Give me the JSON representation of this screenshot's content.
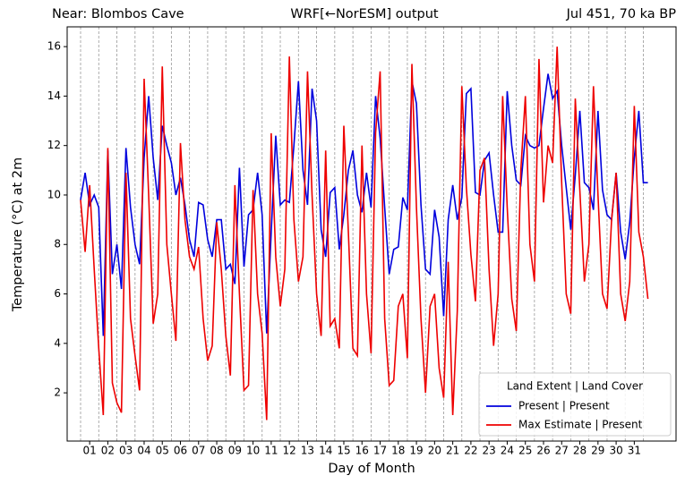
{
  "chart_data": {
    "type": "line",
    "title_left": "Near: Blombos Cave",
    "title": "WRF[←NorESM] output",
    "title_right": "Jul 451, 70 ka BP",
    "xlabel": "Day of Month",
    "ylabel": "Temperature (°C) at 2m",
    "legend_title": "Land Extent | Land Cover",
    "legend": "lower right",
    "xlim": [
      0.26,
      33.8
    ],
    "ylim": [
      0.05,
      16.8
    ],
    "yticks": [
      2,
      4,
      6,
      8,
      10,
      12,
      14,
      16
    ],
    "xticks": [
      {
        "value": 1.5,
        "label": "01"
      },
      {
        "value": 2.5,
        "label": "02"
      },
      {
        "value": 3.5,
        "label": "03"
      },
      {
        "value": 4.5,
        "label": "04"
      },
      {
        "value": 5.5,
        "label": "05"
      },
      {
        "value": 6.5,
        "label": "06"
      },
      {
        "value": 7.5,
        "label": "07"
      },
      {
        "value": 8.5,
        "label": "08"
      },
      {
        "value": 9.5,
        "label": "09"
      },
      {
        "value": 10.5,
        "label": "10"
      },
      {
        "value": 11.5,
        "label": "11"
      },
      {
        "value": 12.5,
        "label": "12"
      },
      {
        "value": 13.5,
        "label": "13"
      },
      {
        "value": 14.5,
        "label": "14"
      },
      {
        "value": 15.5,
        "label": "15"
      },
      {
        "value": 16.5,
        "label": "16"
      },
      {
        "value": 17.5,
        "label": "17"
      },
      {
        "value": 18.5,
        "label": "18"
      },
      {
        "value": 19.5,
        "label": "19"
      },
      {
        "value": 20.5,
        "label": "20"
      },
      {
        "value": 21.5,
        "label": "21"
      },
      {
        "value": 22.5,
        "label": "22"
      },
      {
        "value": 23.5,
        "label": "23"
      },
      {
        "value": 24.5,
        "label": "24"
      },
      {
        "value": 25.5,
        "label": "25"
      },
      {
        "value": 26.5,
        "label": "26"
      },
      {
        "value": 27.5,
        "label": "27"
      },
      {
        "value": 28.5,
        "label": "28"
      },
      {
        "value": 29.5,
        "label": "29"
      },
      {
        "value": 30.5,
        "label": "30"
      },
      {
        "value": 31.5,
        "label": "31"
      }
    ],
    "vlines": [
      1,
      2,
      3,
      4,
      5,
      6,
      7,
      8,
      9,
      10,
      11,
      12,
      13,
      14,
      15,
      16,
      17,
      18,
      19,
      20,
      21,
      22,
      23,
      24,
      25,
      26,
      27,
      28,
      29,
      30,
      31,
      32
    ],
    "x": [
      1,
      1.25,
      1.5,
      1.75,
      2,
      2.25,
      2.5,
      2.75,
      3,
      3.25,
      3.5,
      3.75,
      4,
      4.25,
      4.5,
      4.75,
      5,
      5.25,
      5.5,
      5.75,
      6,
      6.25,
      6.5,
      6.75,
      7,
      7.25,
      7.5,
      7.75,
      8,
      8.25,
      8.5,
      8.75,
      9,
      9.25,
      9.5,
      9.75,
      10,
      10.25,
      10.5,
      10.75,
      11,
      11.25,
      11.5,
      11.75,
      12,
      12.25,
      12.5,
      12.75,
      13,
      13.25,
      13.5,
      13.75,
      14,
      14.25,
      14.5,
      14.75,
      15,
      15.25,
      15.5,
      15.75,
      16,
      16.25,
      16.5,
      16.75,
      17,
      17.25,
      17.5,
      17.75,
      18,
      18.25,
      18.5,
      18.75,
      19,
      19.25,
      19.5,
      19.75,
      20,
      20.25,
      20.5,
      20.75,
      21,
      21.25,
      21.5,
      21.75,
      22,
      22.25,
      22.5,
      22.75,
      23,
      23.25,
      23.5,
      23.75,
      24,
      24.25,
      24.5,
      24.75,
      25,
      25.25,
      25.5,
      25.75,
      26,
      26.25,
      26.5,
      26.75,
      27,
      27.25,
      27.5,
      27.75,
      28,
      28.25,
      28.5,
      28.75,
      29,
      29.25,
      29.5,
      29.75,
      30,
      30.25,
      30.5,
      30.75,
      31,
      31.25,
      31.5,
      31.75,
      32,
      32.25
    ],
    "series": [
      {
        "name": "Present | Present",
        "color": "#0000dd",
        "values": [
          9.8,
          10.9,
          9.6,
          10.0,
          9.5,
          4.3,
          11.8,
          6.8,
          8.0,
          6.2,
          11.9,
          9.5,
          8.0,
          7.2,
          11.5,
          14.0,
          11.5,
          9.8,
          12.8,
          12.0,
          11.3,
          10.0,
          10.7,
          9.6,
          8.2,
          7.5,
          9.7,
          9.6,
          8.2,
          7.5,
          9.0,
          9.0,
          7.0,
          7.2,
          6.4,
          11.1,
          7.1,
          9.2,
          9.4,
          10.9,
          9.2,
          4.4,
          8.5,
          12.4,
          9.6,
          9.8,
          9.7,
          12.0,
          14.6,
          11.0,
          9.6,
          14.3,
          13.0,
          8.6,
          7.5,
          10.1,
          10.3,
          7.8,
          9.2,
          11.0,
          11.8,
          10.0,
          9.3,
          10.9,
          9.5,
          14.0,
          12.3,
          9.5,
          6.8,
          7.8,
          7.9,
          9.9,
          9.4,
          14.6,
          13.7,
          9.6,
          7.0,
          6.8,
          9.4,
          8.3,
          5.1,
          9.0,
          10.4,
          9.0,
          9.9,
          14.1,
          14.3,
          10.1,
          10.0,
          11.4,
          11.7,
          10.0,
          8.5,
          8.5,
          14.2,
          12.0,
          10.6,
          10.4,
          12.4,
          12.0,
          11.9,
          12.0,
          13.5,
          14.9,
          13.9,
          14.2,
          12.0,
          10.3,
          8.6,
          10.8,
          13.4,
          10.5,
          10.3,
          9.4,
          13.4,
          10.2,
          9.2,
          9.0,
          10.9,
          8.5,
          7.4,
          8.9,
          11.5,
          13.4,
          10.5,
          10.5
        ]
      },
      {
        "name": "Max Estimate | Present",
        "color": "#ee0000",
        "values": [
          9.8,
          7.7,
          10.4,
          7.0,
          3.8,
          1.1,
          11.9,
          2.4,
          1.6,
          1.2,
          10.9,
          5.0,
          3.5,
          2.1,
          14.7,
          10.0,
          4.8,
          6.0,
          15.2,
          8.0,
          6.0,
          4.1,
          12.1,
          9.0,
          7.5,
          7.0,
          7.9,
          5.0,
          3.3,
          3.9,
          8.9,
          7.0,
          4.3,
          2.7,
          10.4,
          6.0,
          2.1,
          2.3,
          10.2,
          6.0,
          4.4,
          0.9,
          12.5,
          7.5,
          5.5,
          7.0,
          15.6,
          9.0,
          6.5,
          7.5,
          15.0,
          10.0,
          6.0,
          4.3,
          11.8,
          4.7,
          5.0,
          3.8,
          12.8,
          8.5,
          3.8,
          3.5,
          12.0,
          6.0,
          3.6,
          12.5,
          15.0,
          5.0,
          2.3,
          2.5,
          5.5,
          6.0,
          3.4,
          15.3,
          9.5,
          5.0,
          2.0,
          5.5,
          6.0,
          3.0,
          1.8,
          7.3,
          1.1,
          5.3,
          14.4,
          10.3,
          7.6,
          5.7,
          11.0,
          11.5,
          7.0,
          3.9,
          6.0,
          14.0,
          9.5,
          5.8,
          4.5,
          11.0,
          14.0,
          8.0,
          6.5,
          15.5,
          9.7,
          12.0,
          11.3,
          16.0,
          10.5,
          6.0,
          5.2,
          13.9,
          10.2,
          6.5,
          8.0,
          14.4,
          10.0,
          6.0,
          5.4,
          9.0,
          10.9,
          6.0,
          4.9,
          6.5,
          13.6,
          8.5,
          7.5,
          5.8
        ]
      }
    ]
  }
}
